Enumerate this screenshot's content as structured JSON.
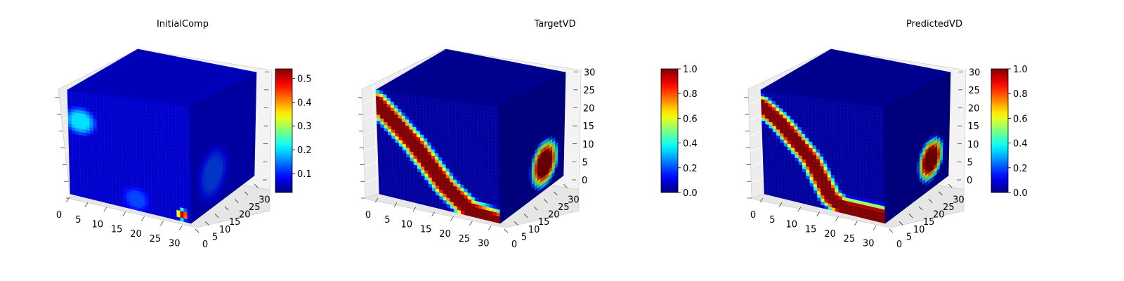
{
  "figure": {
    "background": "#ffffff"
  },
  "chart_data": [
    {
      "type": "heatmap",
      "subtype": "3d-voxel-cube",
      "title": "InitialComp",
      "colormap": "jet",
      "colorbar": {
        "min": 0.02,
        "max": 0.54,
        "ticks": [
          0.1,
          0.2,
          0.3,
          0.4,
          0.5
        ]
      },
      "x_ticks": [
        0,
        5,
        10,
        15,
        20,
        25,
        30
      ],
      "y_ticks": [
        0,
        5,
        10,
        15,
        20,
        25,
        30
      ],
      "z_ticks": [],
      "grid": true,
      "features": [
        {
          "face": "front",
          "center": [
            0.1,
            0.72
          ],
          "radius": 0.14,
          "value": 0.2
        },
        {
          "face": "front",
          "center": [
            0.55,
            0.1
          ],
          "radius": 0.12,
          "value": 0.12
        },
        {
          "face": "front",
          "center": [
            0.93,
            0.06
          ],
          "radius": 0.05,
          "value": 0.5
        },
        {
          "face": "side",
          "center": [
            0.35,
            0.3
          ],
          "radius": 0.25,
          "value": 0.12
        }
      ]
    },
    {
      "type": "heatmap",
      "subtype": "3d-voxel-cube",
      "title": "TargetVD",
      "colormap": "jet",
      "colorbar": {
        "min": 0.0,
        "max": 1.0,
        "ticks": [
          0.0,
          0.2,
          0.4,
          0.6,
          0.8,
          1.0
        ]
      },
      "x_ticks": [
        0,
        5,
        10,
        15,
        20,
        25,
        30
      ],
      "y_ticks": [
        0,
        5,
        10,
        15,
        20,
        25,
        30
      ],
      "z_ticks": [
        0,
        5,
        10,
        15,
        20,
        25,
        30
      ],
      "grid": true,
      "features": [
        {
          "face": "front",
          "band": [
            [
              0.0,
              0.88
            ],
            [
              0.3,
              0.55
            ],
            [
              0.55,
              0.22
            ],
            [
              0.75,
              0.05
            ],
            [
              1.0,
              0.0
            ]
          ],
          "width": 0.1,
          "value": 1.0
        },
        {
          "face": "side",
          "center": [
            0.7,
            0.25
          ],
          "radius": 0.22,
          "value": 1.0
        }
      ]
    },
    {
      "type": "heatmap",
      "subtype": "3d-voxel-cube",
      "title": "PredictedVD",
      "colormap": "jet",
      "colorbar": {
        "min": 0.0,
        "max": 1.0,
        "ticks": [
          0.0,
          0.2,
          0.4,
          0.6,
          0.8,
          1.0
        ]
      },
      "x_ticks": [
        0,
        5,
        10,
        15,
        20,
        25,
        30
      ],
      "y_ticks": [
        0,
        5,
        10,
        15,
        20,
        25,
        30
      ],
      "z_ticks": [
        0,
        5,
        10,
        15,
        20,
        25,
        30
      ],
      "grid": true,
      "features": [
        {
          "face": "front",
          "band": [
            [
              0.0,
              0.85
            ],
            [
              0.15,
              0.72
            ],
            [
              0.4,
              0.42
            ],
            [
              0.55,
              0.12
            ],
            [
              0.65,
              0.05
            ],
            [
              1.0,
              0.05
            ]
          ],
          "width": 0.09,
          "value": 1.0
        },
        {
          "face": "side",
          "center": [
            0.72,
            0.28
          ],
          "radius": 0.2,
          "value": 1.0
        }
      ]
    }
  ]
}
